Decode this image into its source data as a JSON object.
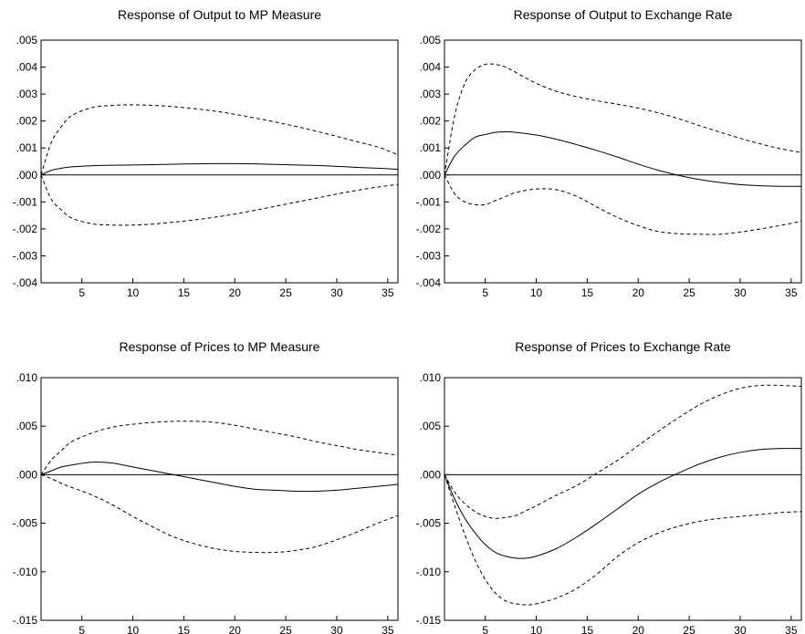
{
  "chart_data": [
    {
      "type": "line",
      "title": "Response of Output to MP Measure",
      "xlabel": "",
      "ylabel": "",
      "xlim": [
        1,
        36
      ],
      "ylim": [
        -0.004,
        0.005
      ],
      "xticks": [
        5,
        10,
        15,
        20,
        25,
        30,
        35
      ],
      "xtick_labels": [
        "5",
        "10",
        "15",
        "20",
        "25",
        "30",
        "35"
      ],
      "yticks": [
        0.005,
        0.004,
        0.003,
        0.002,
        0.001,
        0.0,
        -0.001,
        -0.002,
        -0.003,
        -0.004
      ],
      "ytick_labels": [
        ".005",
        ".004",
        ".003",
        ".002",
        ".001",
        ".000",
        "-.001",
        "-.002",
        "-.003",
        "-.004"
      ],
      "zero_line": true,
      "grid": false,
      "x": [
        1,
        2,
        3,
        4,
        6,
        8,
        10,
        12,
        14,
        16,
        18,
        20,
        22,
        24,
        26,
        28,
        30,
        32,
        34,
        36
      ],
      "series": [
        {
          "style": "solid",
          "values": [
            0.0,
            0.00017,
            0.00025,
            0.0003,
            0.00034,
            0.00036,
            0.00037,
            0.00038,
            0.0004,
            0.00041,
            0.00042,
            0.00042,
            0.00041,
            0.00039,
            0.00037,
            0.00035,
            0.00032,
            0.00028,
            0.00025,
            0.00021
          ]
        },
        {
          "style": "dashed",
          "values": [
            0.0,
            0.0012,
            0.0018,
            0.0022,
            0.0025,
            0.00258,
            0.0026,
            0.00258,
            0.00253,
            0.00246,
            0.00237,
            0.00225,
            0.00211,
            0.00196,
            0.0018,
            0.00162,
            0.00143,
            0.00123,
            0.00104,
            0.00075
          ]
        },
        {
          "style": "dashed",
          "values": [
            0.0,
            -0.0009,
            -0.0013,
            -0.0016,
            -0.00181,
            -0.00186,
            -0.00186,
            -0.00182,
            -0.00175,
            -0.00167,
            -0.00157,
            -0.00145,
            -0.00131,
            -0.00116,
            -0.00101,
            -0.00086,
            -0.00071,
            -0.00057,
            -0.00045,
            -0.00035
          ]
        }
      ]
    },
    {
      "type": "line",
      "title": "Response of Output to Exchange Rate",
      "xlabel": "",
      "ylabel": "",
      "xlim": [
        1,
        36
      ],
      "ylim": [
        -0.004,
        0.005
      ],
      "xticks": [
        5,
        10,
        15,
        20,
        25,
        30,
        35
      ],
      "xtick_labels": [
        "5",
        "10",
        "15",
        "20",
        "25",
        "30",
        "35"
      ],
      "yticks": [
        0.005,
        0.004,
        0.003,
        0.002,
        0.001,
        0.0,
        -0.001,
        -0.002,
        -0.003,
        -0.004
      ],
      "ytick_labels": [
        ".005",
        ".004",
        ".003",
        ".002",
        ".001",
        ".000",
        "-.001",
        "-.002",
        "-.003",
        "-.004"
      ],
      "zero_line": true,
      "grid": false,
      "x": [
        1,
        2,
        3,
        4,
        5,
        6,
        7,
        8,
        10,
        12,
        14,
        16,
        18,
        20,
        22,
        24,
        26,
        28,
        30,
        32,
        34,
        36
      ],
      "series": [
        {
          "style": "solid",
          "values": [
            0.0,
            0.0007,
            0.0011,
            0.0014,
            0.0015,
            0.00158,
            0.0016,
            0.00158,
            0.00148,
            0.00132,
            0.00112,
            0.0009,
            0.00066,
            0.0004,
            0.00017,
            -2e-05,
            -0.00017,
            -0.00028,
            -0.00036,
            -0.0004,
            -0.00042,
            -0.00042
          ]
        },
        {
          "style": "dashed",
          "values": [
            0.0,
            0.0022,
            0.0034,
            0.0039,
            0.0041,
            0.0041,
            0.004,
            0.0038,
            0.0034,
            0.0031,
            0.0029,
            0.00275,
            0.00262,
            0.00248,
            0.0023,
            0.00208,
            0.00183,
            0.00159,
            0.00136,
            0.00115,
            0.00097,
            0.00083
          ]
        },
        {
          "style": "dashed",
          "values": [
            0.0,
            -0.0007,
            -0.001,
            -0.0011,
            -0.0011,
            -0.00095,
            -0.0008,
            -0.00065,
            -0.00052,
            -0.00055,
            -0.0008,
            -0.0012,
            -0.00158,
            -0.00188,
            -0.0021,
            -0.00218,
            -0.0022,
            -0.0022,
            -0.00212,
            -0.002,
            -0.00187,
            -0.00172
          ]
        }
      ]
    },
    {
      "type": "line",
      "title": "Response of Prices to MP Measure",
      "xlabel": "",
      "ylabel": "",
      "xlim": [
        1,
        36
      ],
      "ylim": [
        -0.015,
        0.01
      ],
      "xticks": [
        5,
        10,
        15,
        20,
        25,
        30,
        35
      ],
      "xtick_labels": [
        "5",
        "10",
        "15",
        "20",
        "25",
        "30",
        "35"
      ],
      "yticks": [
        0.01,
        0.005,
        0.0,
        -0.005,
        -0.01,
        -0.015
      ],
      "ytick_labels": [
        ".010",
        ".005",
        ".000",
        "-.005",
        "-.010",
        "-.015"
      ],
      "zero_line": true,
      "grid": false,
      "x": [
        1,
        2,
        3,
        4,
        6,
        8,
        10,
        12,
        14,
        16,
        18,
        20,
        22,
        24,
        26,
        28,
        30,
        32,
        34,
        36
      ],
      "series": [
        {
          "style": "solid",
          "values": [
            0.0,
            0.0004,
            0.0008,
            0.001,
            0.0013,
            0.0012,
            0.0008,
            0.0004,
            0.0,
            -0.0004,
            -0.0008,
            -0.0012,
            -0.0015,
            -0.0016,
            -0.0017,
            -0.0017,
            -0.0016,
            -0.0014,
            -0.0012,
            -0.001
          ]
        },
        {
          "style": "dashed",
          "values": [
            0.0,
            0.0015,
            0.0025,
            0.0034,
            0.0043,
            0.0049,
            0.0052,
            0.0054,
            0.0055,
            0.0055,
            0.0054,
            0.0051,
            0.0047,
            0.0043,
            0.0039,
            0.0034,
            0.003,
            0.0026,
            0.0023,
            0.002
          ]
        },
        {
          "style": "dashed",
          "values": [
            0.0,
            -0.0004,
            -0.0009,
            -0.0013,
            -0.0021,
            -0.0031,
            -0.0043,
            -0.0054,
            -0.0064,
            -0.0071,
            -0.0076,
            -0.0079,
            -0.008,
            -0.008,
            -0.0078,
            -0.0074,
            -0.0067,
            -0.0059,
            -0.005,
            -0.0042
          ]
        }
      ]
    },
    {
      "type": "line",
      "title": "Response of Prices to Exchange Rate",
      "xlabel": "",
      "ylabel": "",
      "xlim": [
        1,
        36
      ],
      "ylim": [
        -0.015,
        0.01
      ],
      "xticks": [
        5,
        10,
        15,
        20,
        25,
        30,
        35
      ],
      "xtick_labels": [
        "5",
        "10",
        "15",
        "20",
        "25",
        "30",
        "35"
      ],
      "yticks": [
        0.01,
        0.005,
        0.0,
        -0.005,
        -0.01,
        -0.015
      ],
      "ytick_labels": [
        ".010",
        ".005",
        ".000",
        "-.005",
        "-.010",
        "-.015"
      ],
      "zero_line": true,
      "grid": false,
      "x": [
        1,
        2,
        3,
        4,
        5,
        6,
        7,
        8,
        9,
        10,
        12,
        14,
        16,
        18,
        20,
        22,
        24,
        26,
        28,
        30,
        32,
        34,
        36
      ],
      "series": [
        {
          "style": "solid",
          "values": [
            0.0,
            -0.0025,
            -0.0045,
            -0.006,
            -0.0072,
            -0.008,
            -0.0084,
            -0.0086,
            -0.0086,
            -0.0084,
            -0.0076,
            -0.0064,
            -0.005,
            -0.0035,
            -0.002,
            -0.0008,
            0.0002,
            0.0011,
            0.0018,
            0.0023,
            0.0026,
            0.0027,
            0.0027
          ]
        },
        {
          "style": "dashed",
          "values": [
            0.0,
            -0.0018,
            -0.003,
            -0.0038,
            -0.0043,
            -0.0045,
            -0.0044,
            -0.0042,
            -0.0037,
            -0.0032,
            -0.0021,
            -0.0011,
            0.0002,
            0.0015,
            0.003,
            0.0045,
            0.0059,
            0.0072,
            0.0082,
            0.0089,
            0.0092,
            0.0092,
            0.0091
          ]
        },
        {
          "style": "dashed",
          "values": [
            0.0,
            -0.0032,
            -0.0062,
            -0.0088,
            -0.0108,
            -0.0122,
            -0.013,
            -0.0133,
            -0.0134,
            -0.0133,
            -0.0127,
            -0.0117,
            -0.0102,
            -0.0084,
            -0.007,
            -0.006,
            -0.0053,
            -0.0048,
            -0.0045,
            -0.0043,
            -0.0041,
            -0.0039,
            -0.0038
          ]
        }
      ]
    }
  ]
}
